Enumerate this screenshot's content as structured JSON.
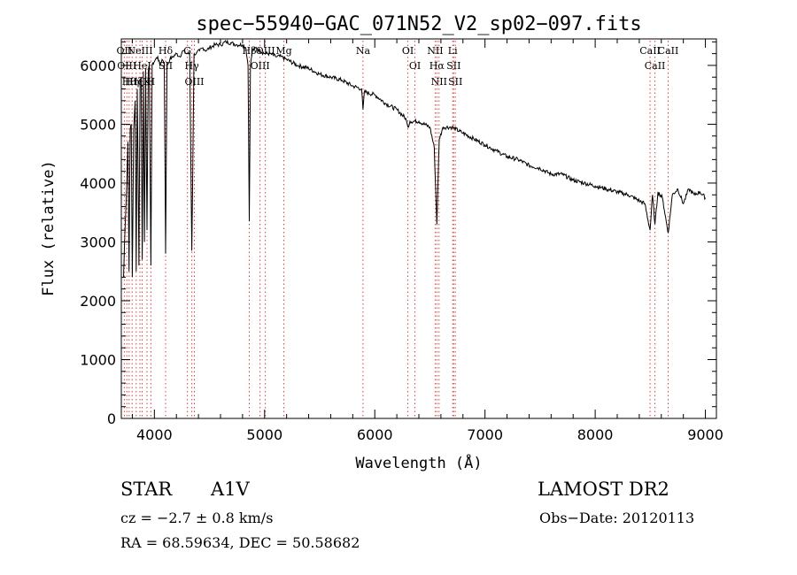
{
  "chart_data": {
    "type": "line",
    "title": "spec−55940−GAC_071N52_V2_sp02−097.fits",
    "xlabel": "Wavelength (Å)",
    "ylabel": "Flux (relative)",
    "xlim": [
      3700,
      9100
    ],
    "ylim": [
      0,
      6450
    ],
    "x_ticks": [
      4000,
      5000,
      6000,
      7000,
      8000,
      9000
    ],
    "y_ticks": [
      0,
      1000,
      2000,
      3000,
      4000,
      5000,
      6000
    ],
    "grid": false,
    "series": [
      {
        "x": [
          3720,
          3735,
          3750,
          3760,
          3770,
          3780,
          3790,
          3800,
          3812,
          3825,
          3835,
          3845,
          3860,
          3870,
          3880,
          3890,
          3900,
          3910,
          3920,
          3933,
          3945,
          3955,
          3968,
          3980,
          3995,
          4010,
          4030,
          4050,
          4070,
          4090,
          4102,
          4115,
          4140,
          4170,
          4200,
          4230,
          4260,
          4290,
          4320,
          4340,
          4360,
          4380,
          4410,
          4440,
          4470,
          4500,
          4550,
          4600,
          4650,
          4700,
          4750,
          4800,
          4830,
          4850,
          4861,
          4872,
          4890,
          4920,
          4960,
          5000,
          5050,
          5100,
          5150,
          5200,
          5300,
          5400,
          5500,
          5600,
          5700,
          5800,
          5880,
          5893,
          5905,
          6000,
          6100,
          6200,
          6280,
          6300,
          6320,
          6400,
          6500,
          6540,
          6563,
          6585,
          6620,
          6700,
          6800,
          6900,
          7000,
          7100,
          7200,
          7300,
          7400,
          7500,
          7600,
          7700,
          7800,
          7900,
          8000,
          8100,
          8200,
          8300,
          8400,
          8450,
          8498,
          8520,
          8542,
          8570,
          8610,
          8662,
          8700,
          8750,
          8800,
          8850,
          8900,
          8950,
          9000
        ],
        "y": [
          2400,
          3300,
          4000,
          4700,
          2500,
          4900,
          5000,
          2400,
          4900,
          5400,
          2500,
          5600,
          2600,
          5700,
          5800,
          2700,
          5900,
          3000,
          5950,
          3200,
          5900,
          6000,
          2600,
          6000,
          6050,
          6100,
          6150,
          6000,
          6100,
          6050,
          2800,
          6000,
          6100,
          6150,
          6200,
          6150,
          6250,
          6200,
          6200,
          2850,
          6200,
          6200,
          6250,
          6300,
          6250,
          6300,
          6350,
          6350,
          6400,
          6380,
          6350,
          6350,
          6300,
          6000,
          3350,
          6000,
          6250,
          6300,
          6250,
          6200,
          6200,
          6150,
          6150,
          6100,
          6000,
          5950,
          5850,
          5800,
          5750,
          5650,
          5600,
          5250,
          5550,
          5500,
          5350,
          5250,
          5100,
          4950,
          5050,
          5050,
          4950,
          4600,
          3300,
          4750,
          4950,
          4950,
          4850,
          4750,
          4650,
          4550,
          4450,
          4400,
          4300,
          4250,
          4150,
          4150,
          4050,
          4000,
          3950,
          3900,
          3850,
          3800,
          3700,
          3650,
          3200,
          3800,
          3300,
          3850,
          3750,
          3150,
          3800,
          3900,
          3650,
          3900,
          3800,
          3850,
          3750
        ]
      }
    ],
    "lines": [
      {
        "x": 3727,
        "labels": [
          "OII"
        ]
      },
      {
        "x": 3750,
        "labels": [
          "OIII"
        ]
      },
      {
        "x": 3771,
        "labels": [
          "Hθ"
        ]
      },
      {
        "x": 3798,
        "labels": [
          "Hη"
        ]
      },
      {
        "x": 3835,
        "labels": [
          "Hζ"
        ]
      },
      {
        "x": 3869,
        "labels": [
          "NeIII"
        ]
      },
      {
        "x": 3889,
        "labels": [
          "HeI"
        ]
      },
      {
        "x": 3933,
        "labels": [
          "K"
        ]
      },
      {
        "x": 3968,
        "labels": [
          "H"
        ]
      },
      {
        "x": 4102,
        "labels": [
          "Hδ",
          "SII"
        ]
      },
      {
        "x": 4300,
        "labels": [
          "G"
        ]
      },
      {
        "x": 4340,
        "labels": [
          "Hγ"
        ]
      },
      {
        "x": 4363,
        "labels": [
          "OIII"
        ]
      },
      {
        "x": 4861,
        "labels": [
          "Hβ"
        ]
      },
      {
        "x": 4959,
        "labels": [
          "OIII"
        ]
      },
      {
        "x": 5007,
        "labels": [
          "OIII"
        ]
      },
      {
        "x": 5175,
        "labels": [
          "Mg"
        ]
      },
      {
        "x": 5893,
        "labels": [
          "Na"
        ]
      },
      {
        "x": 6300,
        "labels": [
          "OI"
        ]
      },
      {
        "x": 6364,
        "labels": [
          "OI"
        ]
      },
      {
        "x": 6548,
        "labels": [
          "NII"
        ]
      },
      {
        "x": 6563,
        "labels": [
          "Hα"
        ]
      },
      {
        "x": 6583,
        "labels": [
          "NII"
        ]
      },
      {
        "x": 6707,
        "labels": [
          "Li"
        ]
      },
      {
        "x": 6716,
        "labels": [
          "SII"
        ]
      },
      {
        "x": 6731,
        "labels": [
          "SII"
        ]
      },
      {
        "x": 8498,
        "labels": [
          "CaII"
        ]
      },
      {
        "x": 8542,
        "labels": [
          "CaII"
        ]
      },
      {
        "x": 8662,
        "labels": [
          "CaII"
        ]
      }
    ]
  },
  "info": {
    "class": "STAR",
    "subclass": "A1V",
    "survey": "LAMOST DR2",
    "cz": "cz = −2.7 ± 0.8 km/s",
    "obs_date": "Obs−Date: 20120113",
    "coords": "RA =  68.59634, DEC =  50.58682"
  }
}
